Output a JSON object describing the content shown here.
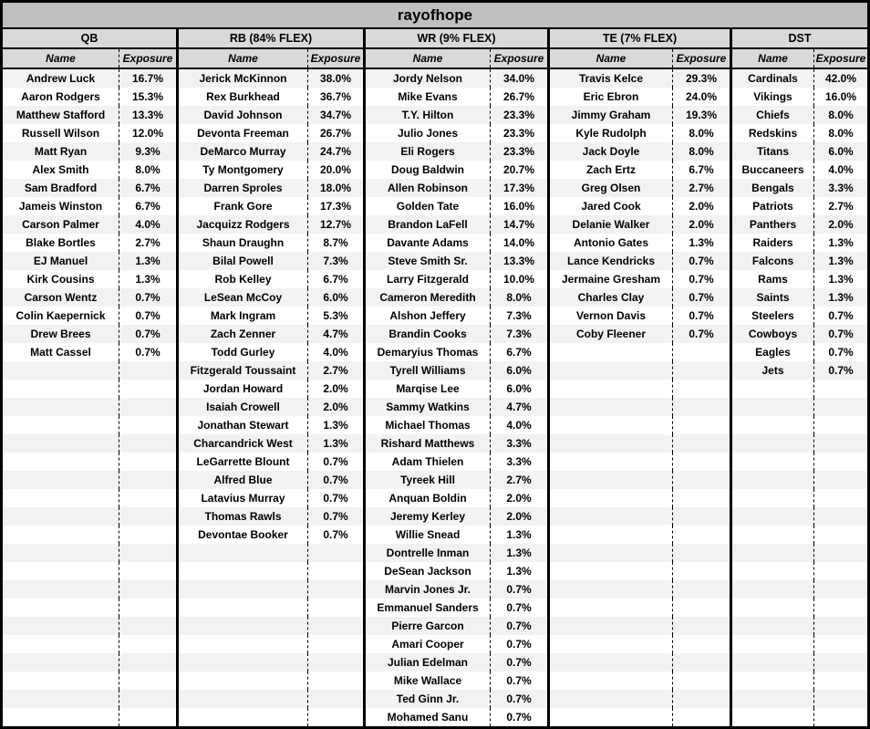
{
  "title": "rayofhope",
  "labels": {
    "name": "Name",
    "exposure": "Exposure"
  },
  "layout_meta": {
    "total_rows": 36
  },
  "colors": {
    "title_bg": "#bfbfbf",
    "header_bg": "#d9d9d9",
    "stripe_bg": "#f2f2f2",
    "border": "#000000"
  },
  "sections": [
    {
      "header": "QB",
      "players": [
        {
          "name": "Andrew Luck",
          "exposure": "16.7%"
        },
        {
          "name": "Aaron Rodgers",
          "exposure": "15.3%"
        },
        {
          "name": "Matthew Stafford",
          "exposure": "13.3%"
        },
        {
          "name": "Russell Wilson",
          "exposure": "12.0%"
        },
        {
          "name": "Matt Ryan",
          "exposure": "9.3%"
        },
        {
          "name": "Alex Smith",
          "exposure": "8.0%"
        },
        {
          "name": "Sam Bradford",
          "exposure": "6.7%"
        },
        {
          "name": "Jameis Winston",
          "exposure": "6.7%"
        },
        {
          "name": "Carson Palmer",
          "exposure": "4.0%"
        },
        {
          "name": "Blake Bortles",
          "exposure": "2.7%"
        },
        {
          "name": "EJ Manuel",
          "exposure": "1.3%"
        },
        {
          "name": "Kirk Cousins",
          "exposure": "1.3%"
        },
        {
          "name": "Carson Wentz",
          "exposure": "0.7%"
        },
        {
          "name": "Colin Kaepernick",
          "exposure": "0.7%"
        },
        {
          "name": "Drew Brees",
          "exposure": "0.7%"
        },
        {
          "name": "Matt Cassel",
          "exposure": "0.7%"
        }
      ]
    },
    {
      "header": "RB (84% FLEX)",
      "players": [
        {
          "name": "Jerick McKinnon",
          "exposure": "38.0%"
        },
        {
          "name": "Rex Burkhead",
          "exposure": "36.7%"
        },
        {
          "name": "David Johnson",
          "exposure": "34.7%"
        },
        {
          "name": "Devonta Freeman",
          "exposure": "26.7%"
        },
        {
          "name": "DeMarco Murray",
          "exposure": "24.7%"
        },
        {
          "name": "Ty Montgomery",
          "exposure": "20.0%"
        },
        {
          "name": "Darren Sproles",
          "exposure": "18.0%"
        },
        {
          "name": "Frank Gore",
          "exposure": "17.3%"
        },
        {
          "name": "Jacquizz Rodgers",
          "exposure": "12.7%"
        },
        {
          "name": "Shaun Draughn",
          "exposure": "8.7%"
        },
        {
          "name": "Bilal Powell",
          "exposure": "7.3%"
        },
        {
          "name": "Rob Kelley",
          "exposure": "6.7%"
        },
        {
          "name": "LeSean McCoy",
          "exposure": "6.0%"
        },
        {
          "name": "Mark Ingram",
          "exposure": "5.3%"
        },
        {
          "name": "Zach Zenner",
          "exposure": "4.7%"
        },
        {
          "name": "Todd Gurley",
          "exposure": "4.0%"
        },
        {
          "name": "Fitzgerald Toussaint",
          "exposure": "2.7%"
        },
        {
          "name": "Jordan Howard",
          "exposure": "2.0%"
        },
        {
          "name": "Isaiah Crowell",
          "exposure": "2.0%"
        },
        {
          "name": "Jonathan Stewart",
          "exposure": "1.3%"
        },
        {
          "name": "Charcandrick West",
          "exposure": "1.3%"
        },
        {
          "name": "LeGarrette Blount",
          "exposure": "0.7%"
        },
        {
          "name": "Alfred Blue",
          "exposure": "0.7%"
        },
        {
          "name": "Latavius Murray",
          "exposure": "0.7%"
        },
        {
          "name": "Thomas Rawls",
          "exposure": "0.7%"
        },
        {
          "name": "Devontae Booker",
          "exposure": "0.7%"
        }
      ]
    },
    {
      "header": "WR (9% FLEX)",
      "players": [
        {
          "name": "Jordy Nelson",
          "exposure": "34.0%"
        },
        {
          "name": "Mike Evans",
          "exposure": "26.7%"
        },
        {
          "name": "T.Y. Hilton",
          "exposure": "23.3%"
        },
        {
          "name": "Julio Jones",
          "exposure": "23.3%"
        },
        {
          "name": "Eli Rogers",
          "exposure": "23.3%"
        },
        {
          "name": "Doug Baldwin",
          "exposure": "20.7%"
        },
        {
          "name": "Allen Robinson",
          "exposure": "17.3%"
        },
        {
          "name": "Golden Tate",
          "exposure": "16.0%"
        },
        {
          "name": "Brandon LaFell",
          "exposure": "14.7%"
        },
        {
          "name": "Davante Adams",
          "exposure": "14.0%"
        },
        {
          "name": "Steve Smith Sr.",
          "exposure": "13.3%"
        },
        {
          "name": "Larry Fitzgerald",
          "exposure": "10.0%"
        },
        {
          "name": "Cameron Meredith",
          "exposure": "8.0%"
        },
        {
          "name": "Alshon Jeffery",
          "exposure": "7.3%"
        },
        {
          "name": "Brandin Cooks",
          "exposure": "7.3%"
        },
        {
          "name": "Demaryius Thomas",
          "exposure": "6.7%"
        },
        {
          "name": "Tyrell Williams",
          "exposure": "6.0%"
        },
        {
          "name": "Marqise Lee",
          "exposure": "6.0%"
        },
        {
          "name": "Sammy Watkins",
          "exposure": "4.7%"
        },
        {
          "name": "Michael Thomas",
          "exposure": "4.0%"
        },
        {
          "name": "Rishard Matthews",
          "exposure": "3.3%"
        },
        {
          "name": "Adam Thielen",
          "exposure": "3.3%"
        },
        {
          "name": "Tyreek Hill",
          "exposure": "2.7%"
        },
        {
          "name": "Anquan Boldin",
          "exposure": "2.0%"
        },
        {
          "name": "Jeremy Kerley",
          "exposure": "2.0%"
        },
        {
          "name": "Willie Snead",
          "exposure": "1.3%"
        },
        {
          "name": "Dontrelle Inman",
          "exposure": "1.3%"
        },
        {
          "name": "DeSean Jackson",
          "exposure": "1.3%"
        },
        {
          "name": "Marvin Jones Jr.",
          "exposure": "0.7%"
        },
        {
          "name": "Emmanuel Sanders",
          "exposure": "0.7%"
        },
        {
          "name": "Pierre Garcon",
          "exposure": "0.7%"
        },
        {
          "name": "Amari Cooper",
          "exposure": "0.7%"
        },
        {
          "name": "Julian Edelman",
          "exposure": "0.7%"
        },
        {
          "name": "Mike Wallace",
          "exposure": "0.7%"
        },
        {
          "name": "Ted Ginn Jr.",
          "exposure": "0.7%"
        },
        {
          "name": "Mohamed Sanu",
          "exposure": "0.7%"
        }
      ]
    },
    {
      "header": "TE (7% FLEX)",
      "players": [
        {
          "name": "Travis Kelce",
          "exposure": "29.3%"
        },
        {
          "name": "Eric Ebron",
          "exposure": "24.0%"
        },
        {
          "name": "Jimmy Graham",
          "exposure": "19.3%"
        },
        {
          "name": "Kyle Rudolph",
          "exposure": "8.0%"
        },
        {
          "name": "Jack Doyle",
          "exposure": "8.0%"
        },
        {
          "name": "Zach Ertz",
          "exposure": "6.7%"
        },
        {
          "name": "Greg Olsen",
          "exposure": "2.7%"
        },
        {
          "name": "Jared Cook",
          "exposure": "2.0%"
        },
        {
          "name": "Delanie Walker",
          "exposure": "2.0%"
        },
        {
          "name": "Antonio Gates",
          "exposure": "1.3%"
        },
        {
          "name": "Lance Kendricks",
          "exposure": "0.7%"
        },
        {
          "name": "Jermaine Gresham",
          "exposure": "0.7%"
        },
        {
          "name": "Charles Clay",
          "exposure": "0.7%"
        },
        {
          "name": "Vernon Davis",
          "exposure": "0.7%"
        },
        {
          "name": "Coby Fleener",
          "exposure": "0.7%"
        }
      ]
    },
    {
      "header": "DST",
      "players": [
        {
          "name": "Cardinals",
          "exposure": "42.0%"
        },
        {
          "name": "Vikings",
          "exposure": "16.0%"
        },
        {
          "name": "Chiefs",
          "exposure": "8.0%"
        },
        {
          "name": "Redskins",
          "exposure": "8.0%"
        },
        {
          "name": "Titans",
          "exposure": "6.0%"
        },
        {
          "name": "Buccaneers",
          "exposure": "4.0%"
        },
        {
          "name": "Bengals",
          "exposure": "3.3%"
        },
        {
          "name": "Patriots",
          "exposure": "2.7%"
        },
        {
          "name": "Panthers",
          "exposure": "2.0%"
        },
        {
          "name": "Raiders",
          "exposure": "1.3%"
        },
        {
          "name": "Falcons",
          "exposure": "1.3%"
        },
        {
          "name": "Rams",
          "exposure": "1.3%"
        },
        {
          "name": "Saints",
          "exposure": "1.3%"
        },
        {
          "name": "Steelers",
          "exposure": "0.7%"
        },
        {
          "name": "Cowboys",
          "exposure": "0.7%"
        },
        {
          "name": "Eagles",
          "exposure": "0.7%"
        },
        {
          "name": "Jets",
          "exposure": "0.7%"
        }
      ]
    }
  ]
}
